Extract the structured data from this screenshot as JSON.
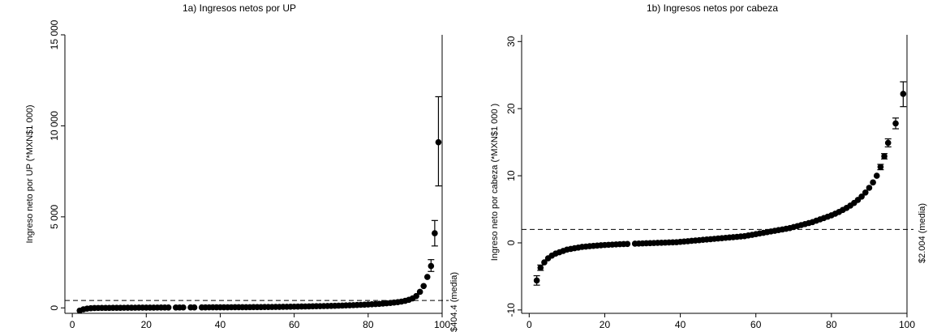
{
  "chart_data": [
    {
      "type": "scatter",
      "title": "1a) Ingresos netos por UP",
      "xlabel": "",
      "ylabel": "Ingreso neto por UP (*MXN$1 000)",
      "xlim": [
        0,
        100
      ],
      "ylim": [
        -300,
        15000
      ],
      "xticks": [
        0,
        20,
        40,
        60,
        80,
        100
      ],
      "xtick_labels": [
        "0",
        "20",
        "40",
        "60",
        "80",
        "100"
      ],
      "yticks": [
        0,
        5000,
        10000,
        15000
      ],
      "ytick_labels": [
        "0",
        "5 000",
        "10 000",
        "15 000"
      ],
      "reference_line": {
        "y": 404.4,
        "label": "$404.4 (media)"
      },
      "grid": false,
      "points": [
        {
          "x": 2,
          "y": -150
        },
        {
          "x": 3,
          "y": -80
        },
        {
          "x": 4,
          "y": -40
        },
        {
          "x": 5,
          "y": -20
        },
        {
          "x": 6,
          "y": -10
        },
        {
          "x": 7,
          "y": -5
        },
        {
          "x": 8,
          "y": 0
        },
        {
          "x": 9,
          "y": 0
        },
        {
          "x": 10,
          "y": 0
        },
        {
          "x": 11,
          "y": 2
        },
        {
          "x": 12,
          "y": 3
        },
        {
          "x": 13,
          "y": 5
        },
        {
          "x": 14,
          "y": 6
        },
        {
          "x": 15,
          "y": 8
        },
        {
          "x": 16,
          "y": 10
        },
        {
          "x": 17,
          "y": 11
        },
        {
          "x": 18,
          "y": 12
        },
        {
          "x": 19,
          "y": 13
        },
        {
          "x": 20,
          "y": 14
        },
        {
          "x": 21,
          "y": 15
        },
        {
          "x": 22,
          "y": 16
        },
        {
          "x": 23,
          "y": 17
        },
        {
          "x": 24,
          "y": 18
        },
        {
          "x": 25,
          "y": 19
        },
        {
          "x": 26,
          "y": 20
        },
        {
          "x": 28,
          "y": 21
        },
        {
          "x": 29,
          "y": 22
        },
        {
          "x": 30,
          "y": 23
        },
        {
          "x": 32,
          "y": 24
        },
        {
          "x": 33,
          "y": 25
        },
        {
          "x": 35,
          "y": 26
        },
        {
          "x": 36,
          "y": 27
        },
        {
          "x": 37,
          "y": 28
        },
        {
          "x": 38,
          "y": 29
        },
        {
          "x": 39,
          "y": 30
        },
        {
          "x": 40,
          "y": 31
        },
        {
          "x": 41,
          "y": 32
        },
        {
          "x": 42,
          "y": 33
        },
        {
          "x": 43,
          "y": 34
        },
        {
          "x": 44,
          "y": 35
        },
        {
          "x": 45,
          "y": 36
        },
        {
          "x": 46,
          "y": 37
        },
        {
          "x": 47,
          "y": 38
        },
        {
          "x": 48,
          "y": 39
        },
        {
          "x": 49,
          "y": 40
        },
        {
          "x": 50,
          "y": 42
        },
        {
          "x": 51,
          "y": 44
        },
        {
          "x": 52,
          "y": 46
        },
        {
          "x": 53,
          "y": 48
        },
        {
          "x": 54,
          "y": 50
        },
        {
          "x": 55,
          "y": 52
        },
        {
          "x": 56,
          "y": 55
        },
        {
          "x": 57,
          "y": 58
        },
        {
          "x": 58,
          "y": 61
        },
        {
          "x": 59,
          "y": 64
        },
        {
          "x": 60,
          "y": 67
        },
        {
          "x": 61,
          "y": 70
        },
        {
          "x": 62,
          "y": 74
        },
        {
          "x": 63,
          "y": 78
        },
        {
          "x": 64,
          "y": 82
        },
        {
          "x": 65,
          "y": 86
        },
        {
          "x": 66,
          "y": 90
        },
        {
          "x": 67,
          "y": 95
        },
        {
          "x": 68,
          "y": 100
        },
        {
          "x": 69,
          "y": 105
        },
        {
          "x": 70,
          "y": 110
        },
        {
          "x": 71,
          "y": 116
        },
        {
          "x": 72,
          "y": 122
        },
        {
          "x": 73,
          "y": 128
        },
        {
          "x": 74,
          "y": 135
        },
        {
          "x": 75,
          "y": 142
        },
        {
          "x": 76,
          "y": 150
        },
        {
          "x": 77,
          "y": 158
        },
        {
          "x": 78,
          "y": 167
        },
        {
          "x": 79,
          "y": 176
        },
        {
          "x": 80,
          "y": 186
        },
        {
          "x": 81,
          "y": 197
        },
        {
          "x": 82,
          "y": 209
        },
        {
          "x": 83,
          "y": 222
        },
        {
          "x": 84,
          "y": 236
        },
        {
          "x": 85,
          "y": 252
        },
        {
          "x": 86,
          "y": 270
        },
        {
          "x": 87,
          "y": 290
        },
        {
          "x": 88,
          "y": 315
        },
        {
          "x": 89,
          "y": 345
        },
        {
          "x": 90,
          "y": 385
        },
        {
          "x": 91,
          "y": 440
        },
        {
          "x": 92,
          "y": 520
        },
        {
          "x": 93,
          "y": 650
        },
        {
          "x": 94,
          "y": 880
        },
        {
          "x": 95,
          "y": 1200
        },
        {
          "x": 96,
          "y": 1700
        },
        {
          "x": 97,
          "y": 2300,
          "lo": 2000,
          "hi": 2650
        },
        {
          "x": 98,
          "y": 4100,
          "lo": 3400,
          "hi": 4800
        },
        {
          "x": 99,
          "y": 9100,
          "lo": 6700,
          "hi": 11600
        }
      ]
    },
    {
      "type": "scatter",
      "title": "1b) Ingresos netos por cabeza",
      "xlabel": "",
      "ylabel": "Ingreso neto por cabeza (*MXN$1 000 )",
      "xlim": [
        0,
        100
      ],
      "ylim": [
        -10.5,
        31
      ],
      "xticks": [
        0,
        20,
        40,
        60,
        80,
        100
      ],
      "xtick_labels": [
        "0",
        "20",
        "40",
        "60",
        "80",
        "100"
      ],
      "yticks": [
        -10,
        0,
        10,
        20,
        30
      ],
      "ytick_labels": [
        "-10",
        "0",
        "10",
        "20",
        "30"
      ],
      "reference_line": {
        "y": 2.004,
        "label": "$2.004 (media)"
      },
      "grid": false,
      "points": [
        {
          "x": 2,
          "y": -5.6,
          "lo": -6.3,
          "hi": -4.9
        },
        {
          "x": 3,
          "y": -3.7,
          "lo": -4.1,
          "hi": -3.3
        },
        {
          "x": 4,
          "y": -2.9
        },
        {
          "x": 5,
          "y": -2.3
        },
        {
          "x": 6,
          "y": -1.9
        },
        {
          "x": 7,
          "y": -1.6
        },
        {
          "x": 8,
          "y": -1.4
        },
        {
          "x": 9,
          "y": -1.2
        },
        {
          "x": 10,
          "y": -1.0
        },
        {
          "x": 11,
          "y": -0.9
        },
        {
          "x": 12,
          "y": -0.8
        },
        {
          "x": 13,
          "y": -0.7
        },
        {
          "x": 14,
          "y": -0.6
        },
        {
          "x": 15,
          "y": -0.55
        },
        {
          "x": 16,
          "y": -0.5
        },
        {
          "x": 17,
          "y": -0.45
        },
        {
          "x": 18,
          "y": -0.4
        },
        {
          "x": 19,
          "y": -0.36
        },
        {
          "x": 20,
          "y": -0.32
        },
        {
          "x": 21,
          "y": -0.29
        },
        {
          "x": 22,
          "y": -0.26
        },
        {
          "x": 23,
          "y": -0.23
        },
        {
          "x": 24,
          "y": -0.2
        },
        {
          "x": 25,
          "y": -0.18
        },
        {
          "x": 26,
          "y": -0.16
        },
        {
          "x": 28,
          "y": -0.12
        },
        {
          "x": 29,
          "y": -0.1
        },
        {
          "x": 30,
          "y": -0.08
        },
        {
          "x": 31,
          "y": -0.06
        },
        {
          "x": 32,
          "y": -0.04
        },
        {
          "x": 33,
          "y": -0.02
        },
        {
          "x": 34,
          "y": 0
        },
        {
          "x": 35,
          "y": 0.02
        },
        {
          "x": 36,
          "y": 0.04
        },
        {
          "x": 37,
          "y": 0.06
        },
        {
          "x": 38,
          "y": 0.08
        },
        {
          "x": 39,
          "y": 0.1
        },
        {
          "x": 40,
          "y": 0.15
        },
        {
          "x": 41,
          "y": 0.2
        },
        {
          "x": 42,
          "y": 0.25
        },
        {
          "x": 43,
          "y": 0.3
        },
        {
          "x": 44,
          "y": 0.35
        },
        {
          "x": 45,
          "y": 0.4
        },
        {
          "x": 46,
          "y": 0.45
        },
        {
          "x": 47,
          "y": 0.5
        },
        {
          "x": 48,
          "y": 0.55
        },
        {
          "x": 49,
          "y": 0.6
        },
        {
          "x": 50,
          "y": 0.65
        },
        {
          "x": 51,
          "y": 0.7
        },
        {
          "x": 52,
          "y": 0.75
        },
        {
          "x": 53,
          "y": 0.8
        },
        {
          "x": 54,
          "y": 0.85
        },
        {
          "x": 55,
          "y": 0.9
        },
        {
          "x": 56,
          "y": 0.95
        },
        {
          "x": 57,
          "y": 1.0
        },
        {
          "x": 58,
          "y": 1.1
        },
        {
          "x": 59,
          "y": 1.2
        },
        {
          "x": 60,
          "y": 1.3
        },
        {
          "x": 61,
          "y": 1.4
        },
        {
          "x": 62,
          "y": 1.5
        },
        {
          "x": 63,
          "y": 1.6
        },
        {
          "x": 64,
          "y": 1.7
        },
        {
          "x": 65,
          "y": 1.8
        },
        {
          "x": 66,
          "y": 1.9
        },
        {
          "x": 67,
          "y": 2.0
        },
        {
          "x": 68,
          "y": 2.1
        },
        {
          "x": 69,
          "y": 2.2
        },
        {
          "x": 70,
          "y": 2.35
        },
        {
          "x": 71,
          "y": 2.5
        },
        {
          "x": 72,
          "y": 2.65
        },
        {
          "x": 73,
          "y": 2.8
        },
        {
          "x": 74,
          "y": 2.95
        },
        {
          "x": 75,
          "y": 3.1
        },
        {
          "x": 76,
          "y": 3.3
        },
        {
          "x": 77,
          "y": 3.5
        },
        {
          "x": 78,
          "y": 3.7
        },
        {
          "x": 79,
          "y": 3.9
        },
        {
          "x": 80,
          "y": 4.1
        },
        {
          "x": 81,
          "y": 4.35
        },
        {
          "x": 82,
          "y": 4.6
        },
        {
          "x": 83,
          "y": 4.9
        },
        {
          "x": 84,
          "y": 5.2
        },
        {
          "x": 85,
          "y": 5.55
        },
        {
          "x": 86,
          "y": 5.95
        },
        {
          "x": 87,
          "y": 6.4
        },
        {
          "x": 88,
          "y": 6.9
        },
        {
          "x": 89,
          "y": 7.5
        },
        {
          "x": 90,
          "y": 8.2
        },
        {
          "x": 91,
          "y": 9.0
        },
        {
          "x": 92,
          "y": 10.0
        },
        {
          "x": 93,
          "y": 11.3,
          "lo": 10.9,
          "hi": 11.7
        },
        {
          "x": 94,
          "y": 12.9,
          "lo": 12.5,
          "hi": 13.3
        },
        {
          "x": 95,
          "y": 14.9,
          "lo": 14.3,
          "hi": 15.5
        },
        {
          "x": 97,
          "y": 17.8,
          "lo": 17.0,
          "hi": 18.6
        },
        {
          "x": 99,
          "y": 22.2,
          "lo": 20.3,
          "hi": 24.0
        }
      ]
    }
  ]
}
